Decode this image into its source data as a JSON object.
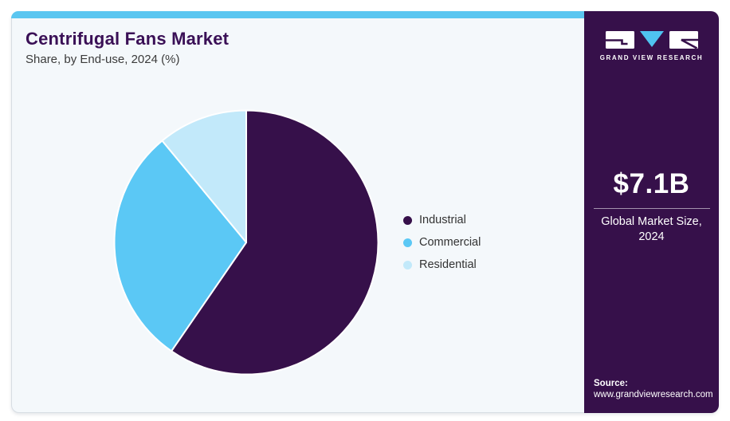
{
  "header": {
    "title": "Centrifugal Fans Market",
    "subtitle": "Share, by End-use, 2024 (%)"
  },
  "chart_data": {
    "type": "pie",
    "title": "Centrifugal Fans Market Share, by End-use, 2024 (%)",
    "categories": [
      "Industrial",
      "Commercial",
      "Residential"
    ],
    "values": [
      59.6,
      29.4,
      11.0
    ],
    "unit": "%",
    "colors": [
      "#36104A",
      "#5BC8F5",
      "#C2E9FA"
    ],
    "slice_border_color": "#FFFFFF",
    "start_angle_deg": 0,
    "direction": "clockwise",
    "legend_position": "right",
    "data_labels_shown": false
  },
  "side_panel": {
    "logo_text": "GRAND VIEW RESEARCH",
    "stat_value": "$7.1B",
    "stat_label": [
      "Global Market Size,",
      "2024"
    ],
    "source_label": "Source:",
    "source_url": "www.grandviewresearch.com"
  },
  "colors": {
    "top_accent_bar": "#5BC6F0",
    "card_background": "#F4F8FB",
    "panel_background": "#36104A",
    "title_text": "#3A1056",
    "body_text": "#3B3B3B",
    "logo_triangle": "#4FC3F0"
  }
}
